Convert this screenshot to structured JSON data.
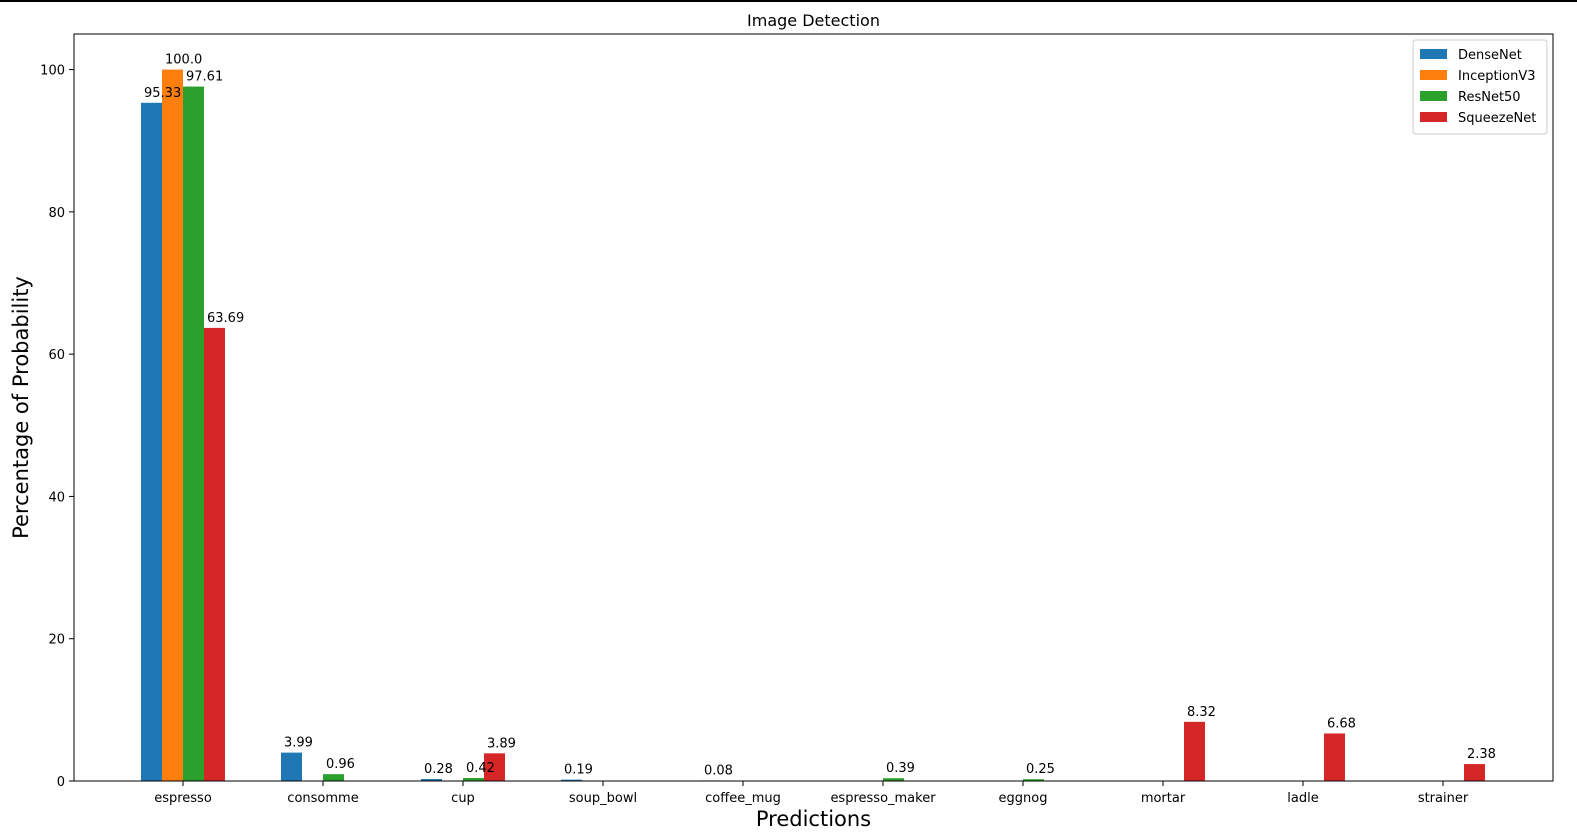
{
  "chart_data": {
    "type": "bar",
    "title": "Image Detection",
    "xlabel": "Predictions",
    "ylabel": "Percentage of Probability",
    "categories": [
      "espresso",
      "consomme",
      "cup",
      "soup_bowl",
      "coffee_mug",
      "espresso_maker",
      "eggnog",
      "mortar",
      "ladle",
      "strainer"
    ],
    "ylim": [
      0,
      105
    ],
    "yticks": [
      0,
      20,
      40,
      60,
      80,
      100
    ],
    "grid": false,
    "legend_position": "top-right",
    "series": [
      {
        "name": "DenseNet",
        "color": "#1f77b4",
        "values": [
          95.33,
          3.99,
          0.28,
          0.19,
          0.08,
          null,
          null,
          null,
          null,
          null
        ],
        "labels": [
          "95.33",
          "3.99",
          "0.28",
          "0.19",
          "0.08",
          null,
          null,
          null,
          null,
          null
        ]
      },
      {
        "name": "InceptionV3",
        "color": "#ff7f0e",
        "values": [
          100.0,
          null,
          null,
          null,
          null,
          null,
          null,
          null,
          null,
          null
        ],
        "labels": [
          "100.0",
          null,
          null,
          null,
          null,
          null,
          null,
          null,
          null,
          null
        ]
      },
      {
        "name": "ResNet50",
        "color": "#2ca02c",
        "values": [
          97.61,
          0.96,
          0.42,
          null,
          null,
          0.39,
          0.25,
          null,
          null,
          null
        ],
        "labels": [
          "97.61",
          "0.96",
          "0.42",
          null,
          null,
          "0.39",
          "0.25",
          null,
          null,
          null
        ]
      },
      {
        "name": "SqueezeNet",
        "color": "#d62728",
        "values": [
          63.69,
          null,
          3.89,
          null,
          null,
          null,
          null,
          8.32,
          6.68,
          2.38
        ],
        "labels": [
          "63.69",
          null,
          "3.89",
          null,
          null,
          null,
          null,
          "8.32",
          "6.68",
          "2.38"
        ]
      }
    ]
  }
}
